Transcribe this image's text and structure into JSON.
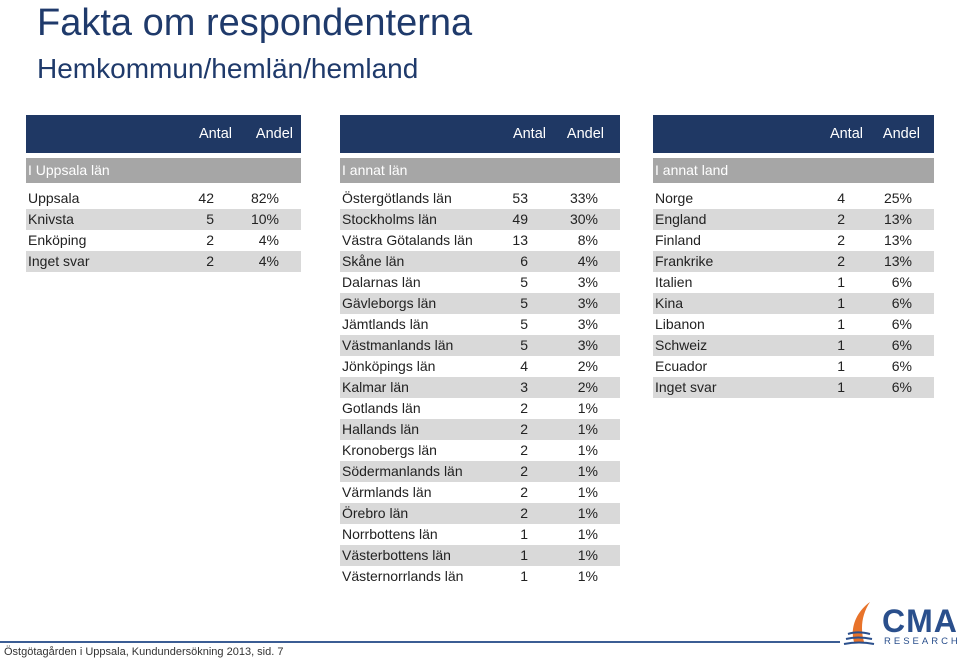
{
  "title": "Fakta om respondenterna",
  "subtitle": "Hemkommun/hemlän/hemland",
  "col_headers": {
    "antal": "Antal",
    "andel": "Andel"
  },
  "table_uppsala": {
    "section": "I Uppsala län",
    "rows": [
      {
        "label": "Uppsala",
        "antal": "42",
        "andel": "82%"
      },
      {
        "label": "Knivsta",
        "antal": "5",
        "andel": "10%"
      },
      {
        "label": "Enköping",
        "antal": "2",
        "andel": "4%"
      },
      {
        "label": "Inget svar",
        "antal": "2",
        "andel": "4%"
      }
    ]
  },
  "table_lan": {
    "section": "I annat län",
    "rows": [
      {
        "label": "Östergötlands län",
        "antal": "53",
        "andel": "33%"
      },
      {
        "label": "Stockholms län",
        "antal": "49",
        "andel": "30%"
      },
      {
        "label": "Västra Götalands län",
        "antal": "13",
        "andel": "8%"
      },
      {
        "label": "Skåne län",
        "antal": "6",
        "andel": "4%"
      },
      {
        "label": "Dalarnas län",
        "antal": "5",
        "andel": "3%"
      },
      {
        "label": "Gävleborgs län",
        "antal": "5",
        "andel": "3%"
      },
      {
        "label": "Jämtlands län",
        "antal": "5",
        "andel": "3%"
      },
      {
        "label": "Västmanlands län",
        "antal": "5",
        "andel": "3%"
      },
      {
        "label": "Jönköpings län",
        "antal": "4",
        "andel": "2%"
      },
      {
        "label": "Kalmar län",
        "antal": "3",
        "andel": "2%"
      },
      {
        "label": "Gotlands län",
        "antal": "2",
        "andel": "1%"
      },
      {
        "label": "Hallands län",
        "antal": "2",
        "andel": "1%"
      },
      {
        "label": "Kronobergs län",
        "antal": "2",
        "andel": "1%"
      },
      {
        "label": "Södermanlands län",
        "antal": "2",
        "andel": "1%"
      },
      {
        "label": "Värmlands län",
        "antal": "2",
        "andel": "1%"
      },
      {
        "label": "Örebro län",
        "antal": "2",
        "andel": "1%"
      },
      {
        "label": "Norrbottens län",
        "antal": "1",
        "andel": "1%"
      },
      {
        "label": "Västerbottens län",
        "antal": "1",
        "andel": "1%"
      },
      {
        "label": "Västernorrlands län",
        "antal": "1",
        "andel": "1%"
      }
    ]
  },
  "table_land": {
    "section": "I annat land",
    "rows": [
      {
        "label": "Norge",
        "antal": "4",
        "andel": "25%"
      },
      {
        "label": "England",
        "antal": "2",
        "andel": "13%"
      },
      {
        "label": "Finland",
        "antal": "2",
        "andel": "13%"
      },
      {
        "label": "Frankrike",
        "antal": "2",
        "andel": "13%"
      },
      {
        "label": "Italien",
        "antal": "1",
        "andel": "6%"
      },
      {
        "label": "Kina",
        "antal": "1",
        "andel": "6%"
      },
      {
        "label": "Libanon",
        "antal": "1",
        "andel": "6%"
      },
      {
        "label": "Schweiz",
        "antal": "1",
        "andel": "6%"
      },
      {
        "label": "Ecuador",
        "antal": "1",
        "andel": "6%"
      },
      {
        "label": "Inget svar",
        "antal": "1",
        "andel": "6%"
      }
    ]
  },
  "footer": "Östgötagården i Uppsala, Kundundersökning 2013, sid. 7",
  "logo": {
    "name": "CMA",
    "sub": "RESEARCH"
  },
  "colors": {
    "header": "#1f3864",
    "section": "#a6a6a6",
    "stripe": "#d9d9d9",
    "title": "#1f3a6b"
  }
}
